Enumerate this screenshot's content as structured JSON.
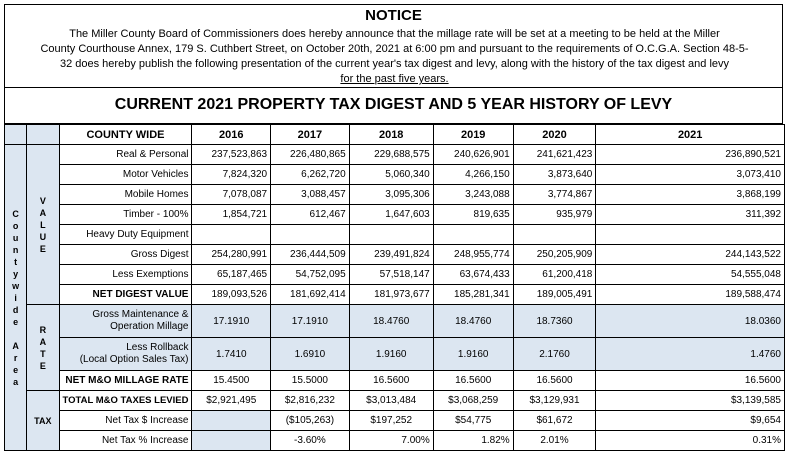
{
  "notice": {
    "title": "NOTICE",
    "lines": [
      "The Miller County Board of Commissioners does hereby announce that the millage rate will be set at a meeting to be   held at the Miller",
      "County Courthouse Annex, 179 S. Cuthbert Street, on  October 20th, 2021 at 6:00 pm and pursuant to     the requirements of O.C.G.A. Section 48-5-",
      "32 does hereby publish the following presentation of the current year's tax digest  and levy, along with the history of the tax digest and levy",
      "for the past five years."
    ]
  },
  "main_title": "CURRENT 2021 PROPERTY TAX DIGEST AND 5 YEAR HISTORY OF LEVY",
  "table": {
    "county_wide_header": "COUNTY WIDE",
    "years": [
      "2016",
      "2017",
      "2018",
      "2019",
      "2020",
      "2021"
    ],
    "side_label": [
      "C",
      "o",
      "u",
      "n",
      "t",
      "y",
      "w",
      "i",
      "d",
      "e",
      "",
      "A",
      "r",
      "e",
      "a"
    ],
    "value_label": [
      "V",
      "A",
      "L",
      "U",
      "E"
    ],
    "rate_label": [
      "R",
      "A",
      "T",
      "E"
    ],
    "tax_label": "TAX",
    "rows": [
      {
        "label": "Real & Personal",
        "values": [
          "237,523,863",
          "226,480,865",
          "229,688,575",
          "240,626,901",
          "241,621,423",
          "236,890,521"
        ]
      },
      {
        "label": "Motor Vehicles",
        "values": [
          "7,824,320",
          "6,262,720",
          "5,060,340",
          "4,266,150",
          "3,873,640",
          "3,073,410"
        ]
      },
      {
        "label": "Mobile Homes",
        "values": [
          "7,078,087",
          "3,088,457",
          "3,095,306",
          "3,243,088",
          "3,774,867",
          "3,868,199"
        ]
      },
      {
        "label": "Timber - 100%",
        "values": [
          "1,854,721",
          "612,467",
          "1,647,603",
          "819,635",
          "935,979",
          "311,392"
        ]
      },
      {
        "label": "Heavy Duty Equipment",
        "values": [
          "",
          "",
          "",
          "",
          "",
          ""
        ]
      },
      {
        "label": "Gross Digest",
        "values": [
          "254,280,991",
          "236,444,509",
          "239,491,824",
          "248,955,774",
          "250,205,909",
          "244,143,522"
        ]
      },
      {
        "label": "Less Exemptions",
        "values": [
          "65,187,465",
          "54,752,095",
          "57,518,147",
          "63,674,433",
          "61,200,418",
          "54,555,048"
        ]
      },
      {
        "label": "NET DIGEST VALUE",
        "values": [
          "189,093,526",
          "181,692,414",
          "181,973,677",
          "185,281,341",
          "189,005,491",
          "189,588,474"
        ]
      }
    ],
    "rate_rows": [
      {
        "label_1": "Gross Maintenance &",
        "label_2": "Operation Millage",
        "values": [
          "17.1910",
          "17.1910",
          "18.4760",
          "18.4760",
          "18.7360",
          "18.0360"
        ]
      },
      {
        "label_1": "Less Rollback",
        "label_2": "(Local Option Sales Tax)",
        "values": [
          "1.7410",
          "1.6910",
          "1.9160",
          "1.9160",
          "2.1760",
          "1.4760"
        ]
      },
      {
        "label": "NET M&O MILLAGE RATE",
        "values": [
          "15.4500",
          "15.5000",
          "16.5600",
          "16.5600",
          "16.5600",
          "16.5600"
        ]
      }
    ],
    "tax_rows": [
      {
        "label": "TOTAL M&O TAXES LEVIED",
        "values": [
          "$2,921,495",
          "$2,816,232",
          "$3,013,484",
          "$3,068,259",
          "$3,129,931",
          "$3,139,585"
        ]
      },
      {
        "label": "Net Tax $ Increase",
        "values": [
          "",
          "($105,263)",
          "$197,252",
          "$54,775",
          "$61,672",
          "$9,654"
        ]
      },
      {
        "label": "Net Tax % Increase",
        "values": [
          "",
          "-3.60%",
          "7.00%",
          "1.82%",
          "2.01%",
          "0.31%"
        ]
      }
    ]
  }
}
